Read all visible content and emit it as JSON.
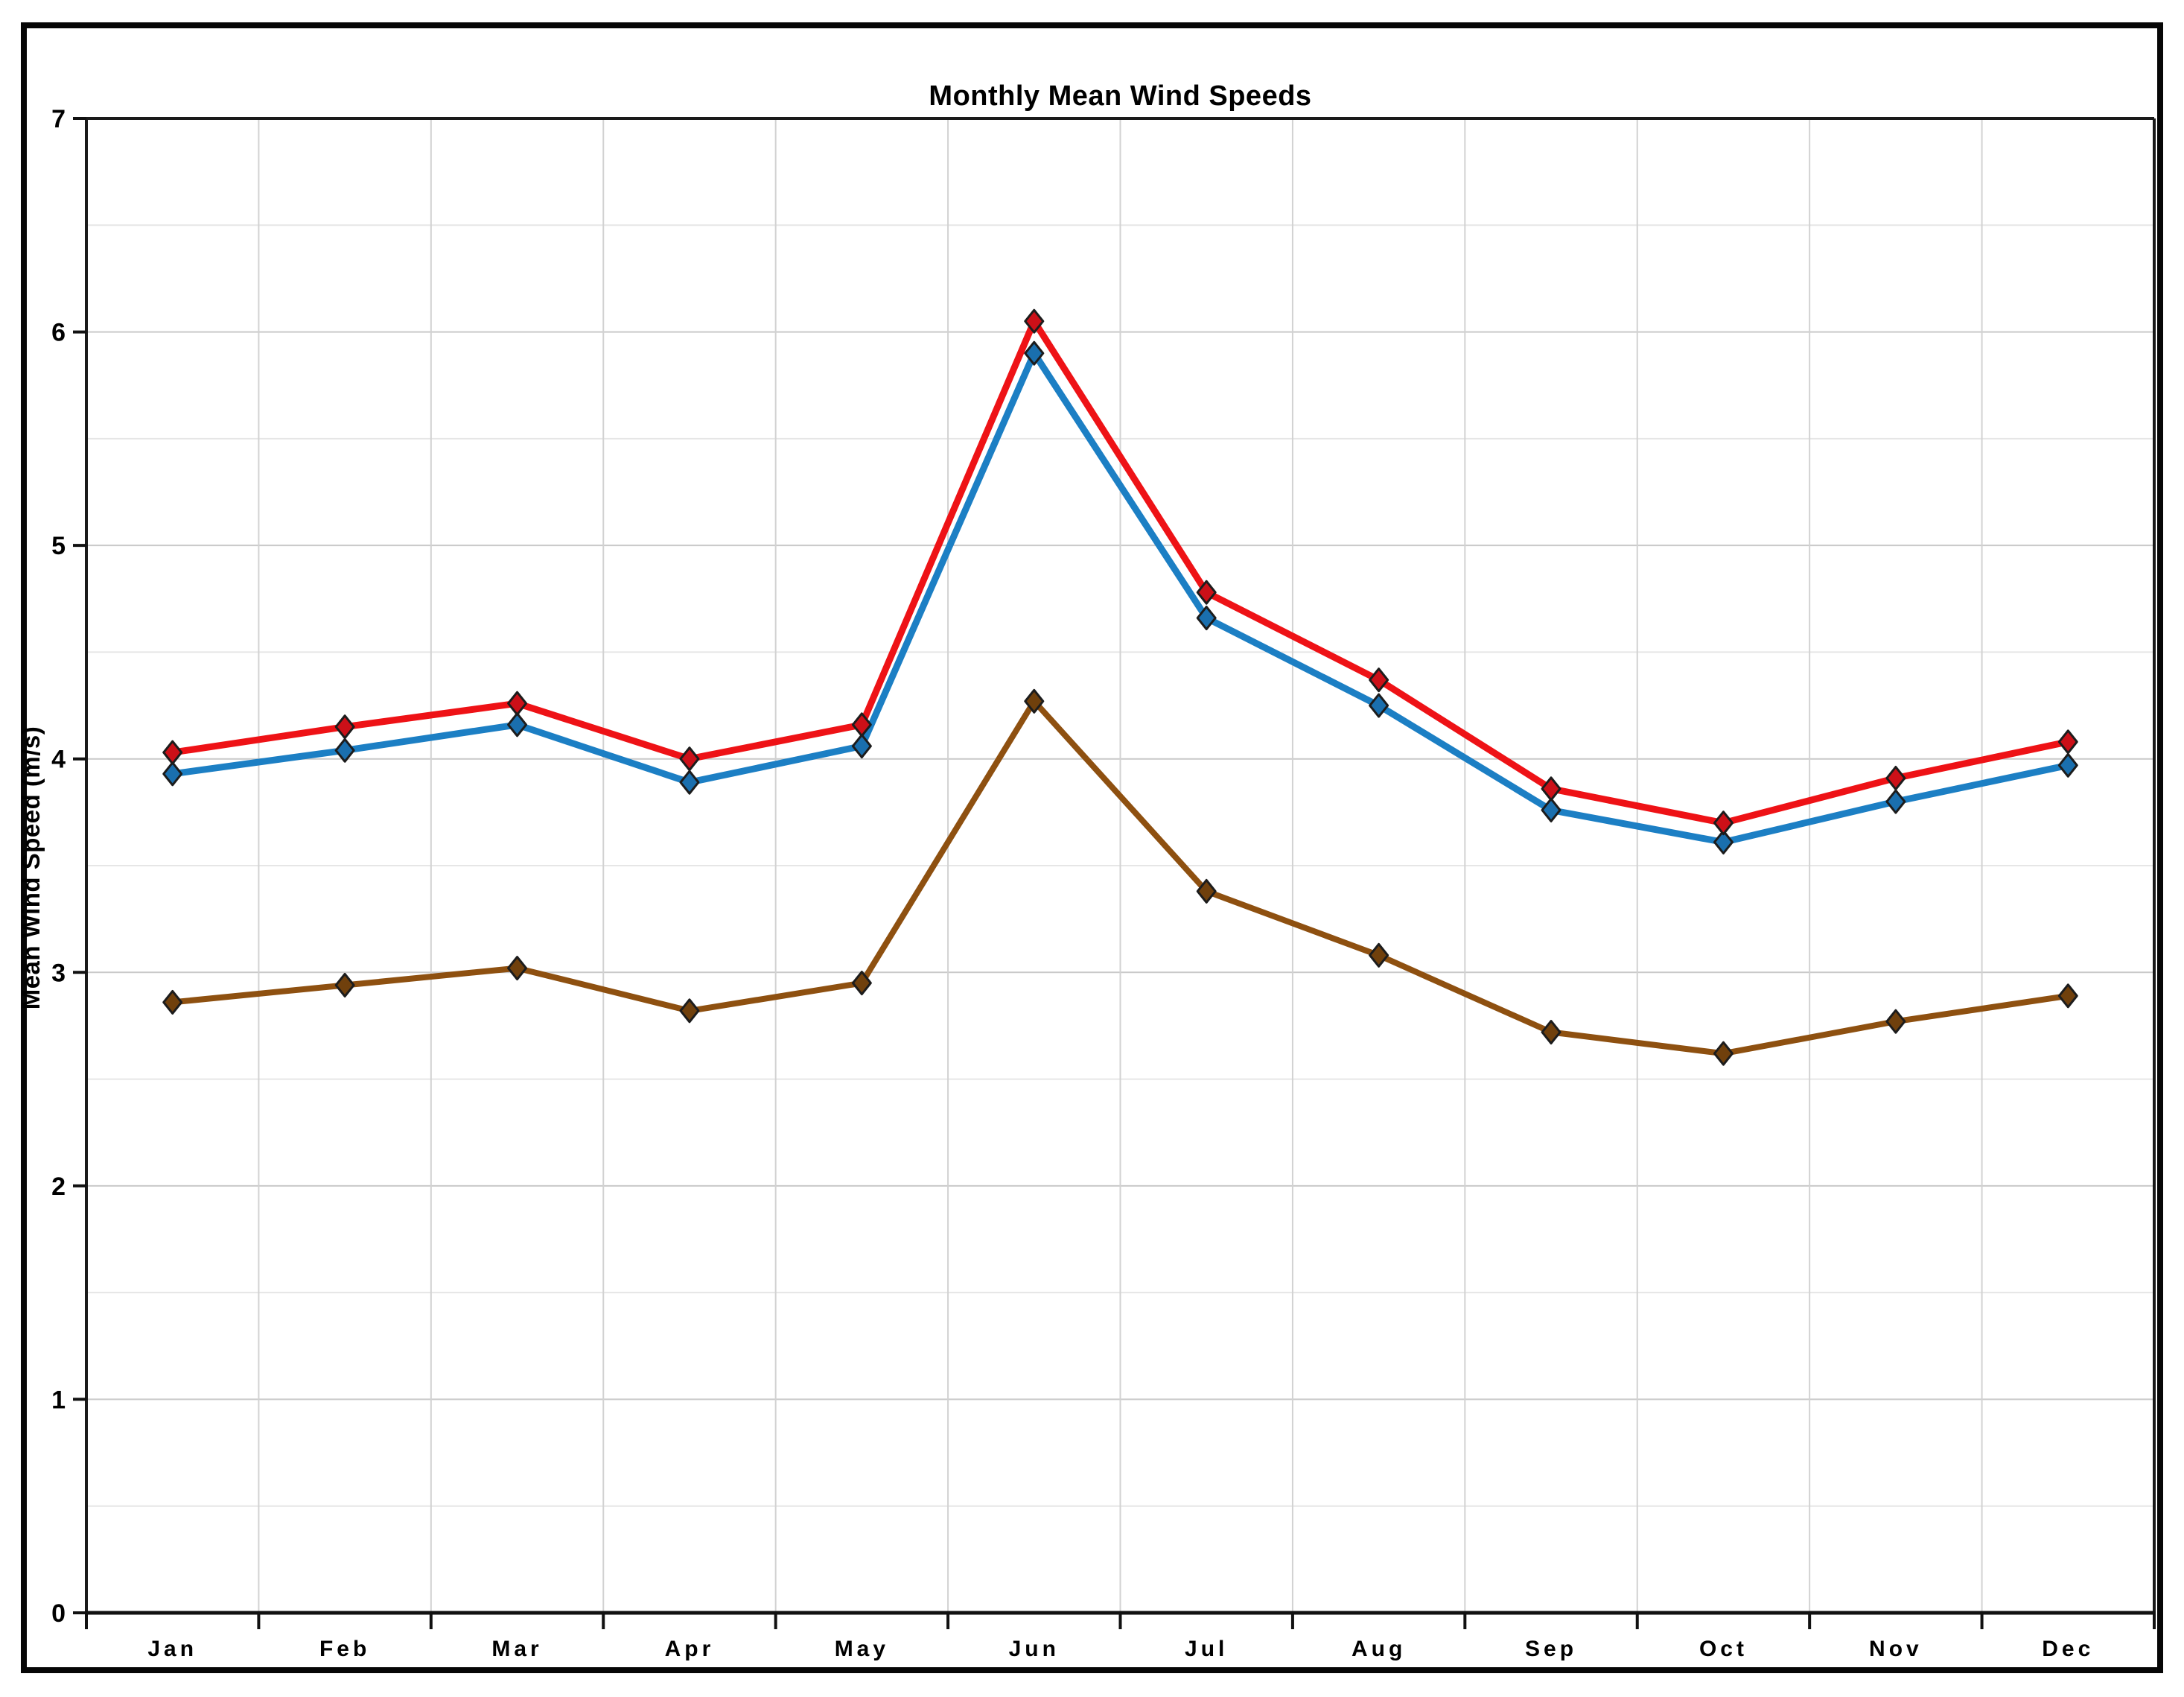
{
  "window": {
    "background": "#ffffff",
    "frame_border_color": "#060606"
  },
  "chart_data": {
    "type": "line",
    "title": "Monthly Mean Wind Speeds",
    "xlabel": "",
    "ylabel": "Mean Wind Speed (m/s)",
    "categories": [
      "Jan",
      "Feb",
      "Mar",
      "Apr",
      "May",
      "Jun",
      "Jul",
      "Aug",
      "Sep",
      "Oct",
      "Nov",
      "Dec"
    ],
    "y_ticks": [
      0,
      1,
      2,
      3,
      4,
      5,
      6,
      7
    ],
    "ylim": [
      0,
      7
    ],
    "legend": "none",
    "grid": {
      "horizontal_major_step": 1,
      "horizontal_minor_step": 0.5,
      "vertical": "month boundaries",
      "major_color": "#c9c9c9",
      "minor_color": "#e6e6e6",
      "vertical_color": "#d2d2d2"
    },
    "series": [
      {
        "name": "red",
        "color": "#ee1216",
        "marker_fill": "#cc1018",
        "marker": "diamond",
        "values": [
          4.03,
          4.15,
          4.26,
          4.0,
          4.16,
          6.05,
          4.78,
          4.37,
          3.86,
          3.7,
          3.91,
          4.08
        ]
      },
      {
        "name": "blue",
        "color": "#1c7fc4",
        "marker_fill": "#1a6fae",
        "marker": "diamond",
        "values": [
          3.93,
          4.04,
          4.16,
          3.89,
          4.06,
          5.9,
          4.66,
          4.25,
          3.76,
          3.61,
          3.8,
          3.97
        ]
      },
      {
        "name": "brown",
        "color": "#8e5010",
        "marker_fill": "#70400c",
        "marker": "diamond",
        "values": [
          2.86,
          2.94,
          3.02,
          2.82,
          2.95,
          4.27,
          3.38,
          3.08,
          2.72,
          2.62,
          2.77,
          2.89
        ]
      }
    ]
  }
}
